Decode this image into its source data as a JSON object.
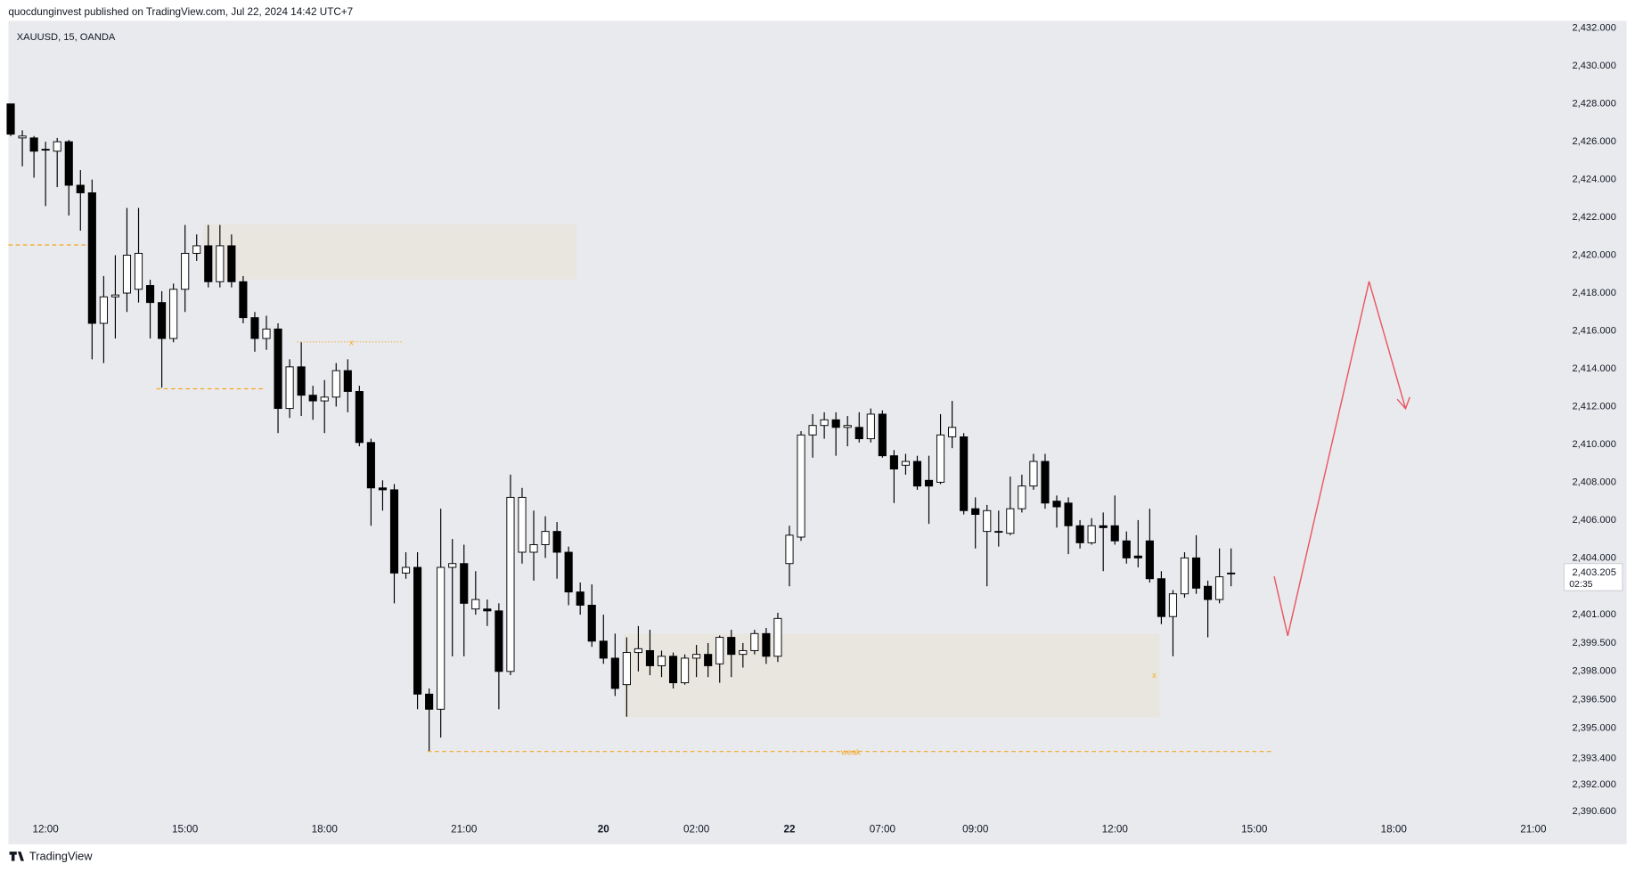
{
  "header": "quocdunginvest published on TradingView.com, Jul 22, 2024 14:42 UTC+7",
  "footer": "TradingView",
  "chart_data": {
    "type": "candlestick",
    "title": "XAUUSD, 15, OANDA",
    "up_color": "#ffffff",
    "down_color": "#000000",
    "xlim": [
      -0.2,
      133.2
    ],
    "xticks": [
      {
        "value": 3,
        "label": "12:00"
      },
      {
        "value": 15,
        "label": "15:00"
      },
      {
        "value": 27,
        "label": "18:00"
      },
      {
        "value": 39,
        "label": "21:00"
      },
      {
        "value": 51,
        "label": "20"
      },
      {
        "value": 59,
        "label": "02:00"
      },
      {
        "value": 67,
        "label": "22"
      },
      {
        "value": 75,
        "label": "07:00"
      },
      {
        "value": 83,
        "label": "09:00"
      },
      {
        "value": 95,
        "label": "12:00"
      },
      {
        "value": 107,
        "label": "15:00"
      },
      {
        "value": 119,
        "label": "18:00"
      },
      {
        "value": 131,
        "label": "21:00"
      }
    ],
    "ylim": [
      2390.24,
      2432.5
    ],
    "yticks": [
      {
        "value": 2432,
        "label": "2,432.000"
      },
      {
        "value": 2430,
        "label": "2,430.000"
      },
      {
        "value": 2428,
        "label": "2,428.000"
      },
      {
        "value": 2426,
        "label": "2,426.000"
      },
      {
        "value": 2424,
        "label": "2,424.000"
      },
      {
        "value": 2422,
        "label": "2,422.000"
      },
      {
        "value": 2420,
        "label": "2,420.000"
      },
      {
        "value": 2418,
        "label": "2,418.000"
      },
      {
        "value": 2416,
        "label": "2,416.000"
      },
      {
        "value": 2414,
        "label": "2,414.000"
      },
      {
        "value": 2412,
        "label": "2,412.000"
      },
      {
        "value": 2410,
        "label": "2,410.000"
      },
      {
        "value": 2408,
        "label": "2,408.000"
      },
      {
        "value": 2406,
        "label": "2,406.000"
      },
      {
        "value": 2404,
        "label": "2,404.000"
      },
      {
        "value": 2401,
        "label": "2,401.000"
      },
      {
        "value": 2399.5,
        "label": "2,399.500"
      },
      {
        "value": 2398,
        "label": "2,398.000"
      },
      {
        "value": 2396.5,
        "label": "2,396.500"
      },
      {
        "value": 2395,
        "label": "2,395.000"
      },
      {
        "value": 2393.4,
        "label": "2,393.400"
      },
      {
        "value": 2392,
        "label": "2,392.000"
      },
      {
        "value": 2390.6,
        "label": "2,390.600"
      }
    ],
    "last_price": {
      "value": 2403.205,
      "label": "2,403.205"
    },
    "countdown": "02:35",
    "annotations": [
      "x",
      "x",
      "weak"
    ],
    "open": [
      2428,
      2426.2,
      2426.2,
      2425.6,
      2425.5,
      2426.0,
      2423.7,
      2423.3,
      2416.4,
      2417.8,
      2418.0,
      2418.2,
      2418.4,
      2417.5,
      2415.6,
      2418.2,
      2420.1,
      2420.5,
      2418.6,
      2420.5,
      2418.6,
      2416.7,
      2415.6,
      2416.1,
      2411.9,
      2414.1,
      2412.6,
      2412.3,
      2412.5,
      2413.9,
      2412.8,
      2410.1,
      2407.7,
      2407.6,
      2403.2,
      2403.5,
      2396.8,
      2396.0,
      2403.5,
      2403.7,
      2401.3,
      2401.3,
      2401.2,
      2398.0,
      2404.3,
      2404.3,
      2404.7,
      2405.4,
      2404.3,
      2402.2,
      2401.5,
      2399.6,
      2398.7,
      2397.3,
      2399.0,
      2399.1,
      2398.3,
      2398.8,
      2397.4,
      2398.7,
      2398.9,
      2398.4,
      2399.8,
      2398.9,
      2399.1,
      2400.0,
      2398.8,
      2403.7,
      2405.1,
      2410.5,
      2411.0,
      2411.3,
      2410.9,
      2410.9,
      2410.3,
      2411.6,
      2409.4,
      2408.9,
      2409.1,
      2408.1,
      2408.0,
      2410.4,
      2410.4,
      2406.6,
      2405.4,
      2405.4,
      2405.3,
      2406.6,
      2407.8,
      2409.1,
      2407.0,
      2406.9,
      2405.7,
      2404.8,
      2405.7,
      2405.7,
      2404.9,
      2404.1,
      2404.9,
      2402.9,
      2400.9,
      2402.1,
      2404.0,
      2402.5,
      2401.8,
      2403.2
    ],
    "high": [
      2428,
      2426.6,
      2426.3,
      2426.0,
      2426.2,
      2426.1,
      2424.5,
      2424.0,
      2418.9,
      2420.0,
      2422.5,
      2422.5,
      2418.7,
      2418.1,
      2418.5,
      2421.6,
      2421.1,
      2421.6,
      2421.6,
      2421.1,
      2418.9,
      2417.0,
      2416.8,
      2416.4,
      2414.5,
      2415.4,
      2413.1,
      2413.4,
      2414.3,
      2414.5,
      2413.1,
      2410.3,
      2408.1,
      2407.9,
      2404.3,
      2404.3,
      2397.1,
      2406.6,
      2405.0,
      2404.7,
      2403.3,
      2401.8,
      2401.6,
      2408.4,
      2407.7,
      2406.5,
      2406.2,
      2405.9,
      2404.6,
      2402.7,
      2402.6,
      2401.0,
      2400.0,
      2399.8,
      2400.4,
      2400.2,
      2399.1,
      2399.0,
      2398.9,
      2399.4,
      2399.5,
      2399.9,
      2400.2,
      2399.5,
      2400.2,
      2400.3,
      2401.1,
      2405.7,
      2410.7,
      2411.6,
      2411.7,
      2411.7,
      2411.5,
      2411.7,
      2411.9,
      2411.8,
      2409.7,
      2409.5,
      2409.4,
      2409.4,
      2411.6,
      2412.3,
      2410.6,
      2407.2,
      2406.8,
      2406.5,
      2408.3,
      2408.4,
      2409.5,
      2409.5,
      2407.3,
      2407.2,
      2406.0,
      2406.1,
      2406.4,
      2407.3,
      2405.4,
      2406.0,
      2406.6,
      2403.3,
      2402.3,
      2404.3,
      2405.2,
      2402.8,
      2404.5,
      2404.5
    ],
    "low": [
      2426.3,
      2424.7,
      2424.1,
      2422.6,
      2423.6,
      2422.1,
      2421.3,
      2414.5,
      2414.3,
      2415.6,
      2417.0,
      2417.5,
      2415.6,
      2413.0,
      2415.4,
      2417.0,
      2419.7,
      2418.3,
      2418.3,
      2418.3,
      2416.4,
      2414.9,
      2415.0,
      2410.6,
      2411.4,
      2411.5,
      2411.3,
      2410.6,
      2412.0,
      2411.7,
      2409.9,
      2405.7,
      2406.5,
      2401.6,
      2402.9,
      2396.0,
      2393.8,
      2394.5,
      2398.8,
      2398.8,
      2401.0,
      2400.4,
      2396.0,
      2397.8,
      2403.7,
      2402.8,
      2404.0,
      2402.9,
      2401.5,
      2401.0,
      2399.3,
      2398.4,
      2396.7,
      2395.6,
      2398.0,
      2397.8,
      2397.7,
      2397.1,
      2397.3,
      2397.7,
      2397.7,
      2397.4,
      2397.7,
      2398.2,
      2398.9,
      2398.4,
      2398.5,
      2402.5,
      2404.9,
      2409.3,
      2410.3,
      2409.4,
      2409.9,
      2410.1,
      2410.1,
      2409.3,
      2406.9,
      2408.4,
      2407.6,
      2405.8,
      2407.9,
      2409.8,
      2406.3,
      2404.5,
      2402.5,
      2404.6,
      2405.2,
      2406.4,
      2407.6,
      2406.6,
      2405.6,
      2404.2,
      2404.5,
      2404.7,
      2403.3,
      2404.7,
      2403.7,
      2403.5,
      2402.7,
      2400.5,
      2398.8,
      2401.9,
      2402.1,
      2399.8,
      2401.6,
      2402.5
    ],
    "close": [
      2426.4,
      2426.3,
      2425.5,
      2425.6,
      2426.0,
      2423.7,
      2423.3,
      2416.4,
      2417.8,
      2417.9,
      2420.0,
      2420.1,
      2417.5,
      2415.6,
      2418.2,
      2420.1,
      2420.5,
      2418.6,
      2420.5,
      2418.6,
      2416.7,
      2415.6,
      2416.1,
      2411.9,
      2414.1,
      2412.6,
      2412.3,
      2412.5,
      2413.9,
      2412.8,
      2410.1,
      2407.7,
      2407.6,
      2403.2,
      2403.5,
      2396.8,
      2396.0,
      2403.5,
      2403.7,
      2401.6,
      2401.8,
      2401.2,
      2398.0,
      2407.2,
      2407.2,
      2404.7,
      2405.4,
      2404.3,
      2402.2,
      2401.5,
      2399.6,
      2398.7,
      2397.1,
      2399.0,
      2399.2,
      2398.3,
      2398.8,
      2397.4,
      2398.7,
      2398.9,
      2398.3,
      2399.8,
      2398.9,
      2399.1,
      2400.0,
      2398.8,
      2400.8,
      2405.2,
      2410.5,
      2411.0,
      2411.3,
      2410.9,
      2411.0,
      2410.3,
      2411.6,
      2409.4,
      2408.7,
      2409.1,
      2407.8,
      2407.8,
      2410.5,
      2410.9,
      2406.5,
      2406.3,
      2406.5,
      2405.4,
      2406.6,
      2407.8,
      2409.1,
      2406.9,
      2406.7,
      2405.7,
      2404.8,
      2405.7,
      2405.6,
      2404.9,
      2404.0,
      2404.0,
      2402.9,
      2400.9,
      2402.1,
      2404.0,
      2402.4,
      2401.8,
      2403.0,
      2403.2
    ]
  }
}
